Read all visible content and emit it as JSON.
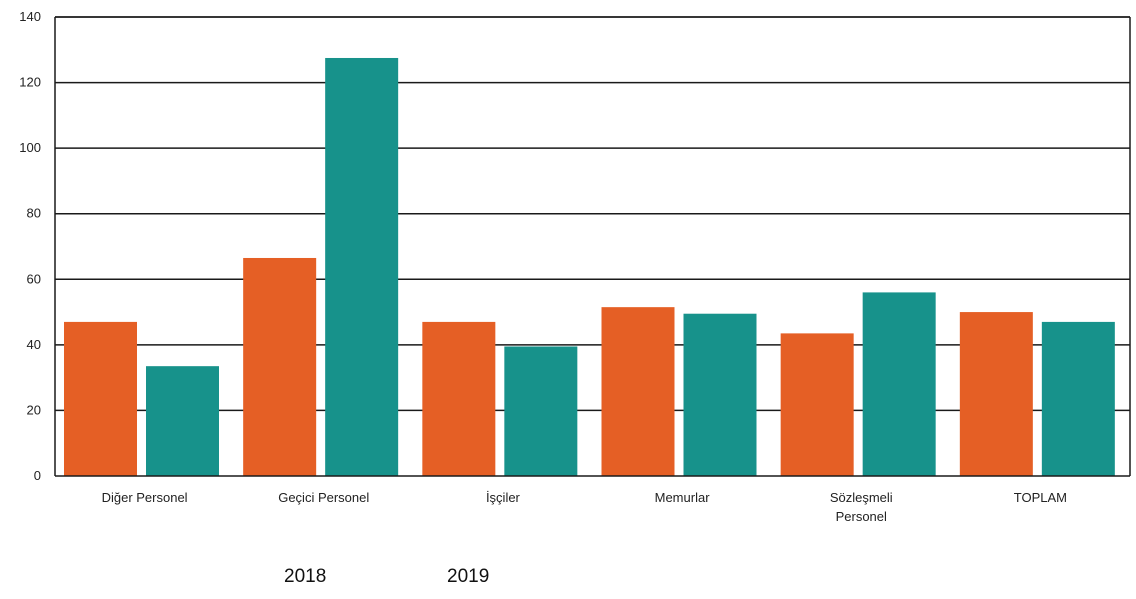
{
  "chart_data": {
    "type": "bar",
    "categories": [
      [
        "Diğer Personel"
      ],
      [
        "Geçici Personel"
      ],
      [
        "İşçiler"
      ],
      [
        "Memurlar"
      ],
      [
        "Sözleşmeli",
        "Personel"
      ],
      [
        "TOPLAM"
      ]
    ],
    "series": [
      {
        "name": "2018",
        "color": "#e55f25",
        "values": [
          47,
          66.5,
          47,
          51.5,
          43.5,
          50
        ]
      },
      {
        "name": "2019",
        "color": "#17928b",
        "values": [
          33.5,
          127.5,
          39.5,
          49.5,
          56,
          47
        ]
      }
    ],
    "yticks": [
      "0",
      "20",
      "40",
      "60",
      "80",
      "100",
      "120",
      "140"
    ],
    "ylim": [
      0,
      140
    ],
    "grid": true,
    "legend_position": "bottom-left"
  }
}
